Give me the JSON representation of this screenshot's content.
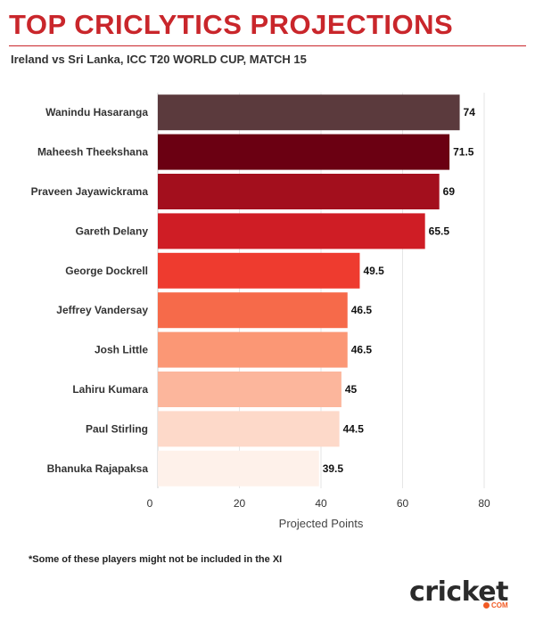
{
  "header": {
    "title": "TOP CRICLYTICS PROJECTIONS",
    "subtitle": "Ireland vs Sri Lanka, ICC T20 WORLD CUP, MATCH 15"
  },
  "footnote": "*Some of these players might not be included in the XI",
  "logo": {
    "word": "cricket",
    "suffix": "COM",
    "accent": "#f15a24"
  },
  "chart_data": {
    "type": "bar",
    "orientation": "horizontal",
    "categories": [
      "Wanindu Hasaranga",
      "Maheesh Theekshana",
      "Praveen Jayawickrama",
      "Gareth Delany",
      "George Dockrell",
      "Jeffrey Vandersay",
      "Josh Little",
      "Lahiru Kumara",
      "Paul Stirling",
      "Bhanuka Rajapaksa"
    ],
    "values": [
      74,
      71.5,
      69,
      65.5,
      49.5,
      46.5,
      46.5,
      45,
      44.5,
      39.5
    ],
    "value_labels": [
      "74",
      "71.5",
      "69",
      "65.5",
      "49.5",
      "46.5",
      "46.5",
      "45",
      "44.5",
      "39.5"
    ],
    "colors": [
      "#5b3a3d",
      "#6b0012",
      "#a30f1d",
      "#cf1d25",
      "#ee3b2f",
      "#f66a4a",
      "#fb9775",
      "#fcb69c",
      "#fdd9c9",
      "#fef1ea"
    ],
    "xlabel": "Projected Points",
    "ylabel": "",
    "xlim": [
      0,
      80
    ],
    "xticks": [
      0,
      20,
      40,
      60,
      80
    ],
    "grid": true
  }
}
